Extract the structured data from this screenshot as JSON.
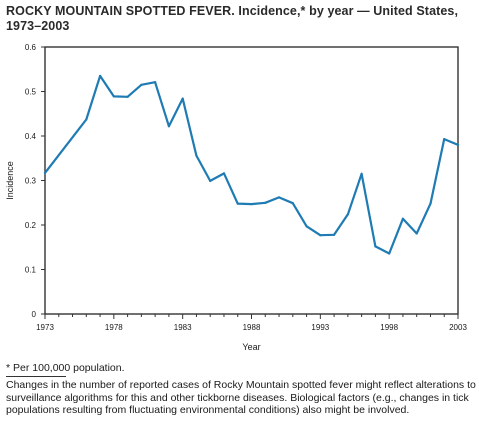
{
  "title": "ROCKY MOUNTAIN SPOTTED FEVER. Incidence,* by year — United States, 1973–2003",
  "footnote": "* Per 100,000 population.",
  "notes": "Changes in the number of reported cases of Rocky Mountain spotted fever might reflect alterations to surveillance algorithms for this and other tickborne diseases. Biological factors (e.g., changes in tick populations resulting from fluctuating environmental conditions) also might be involved.",
  "colors": {
    "line": "#1f7bb4",
    "axis": "#333333",
    "text": "#1a1a1a"
  },
  "chart_data": {
    "type": "line",
    "title": "ROCKY MOUNTAIN SPOTTED FEVER. Incidence,* by year — United States, 1973–2003",
    "xlabel": "Year",
    "ylabel": "Incidence",
    "xlim": [
      1973,
      2003
    ],
    "ylim": [
      0,
      0.6
    ],
    "xticks": [
      "1973",
      "1978",
      "1983",
      "1988",
      "1993",
      "1998",
      "2003"
    ],
    "yticks": [
      "0",
      "0.1",
      "0.2",
      "0.3",
      "0.4",
      "0.5",
      "0.6"
    ],
    "grid": false,
    "series": [
      {
        "x": [
          1973,
          1976,
          1977,
          1978,
          1979,
          1980,
          1981,
          1982,
          1983,
          1984,
          1985,
          1986,
          1987,
          1988,
          1989,
          1990,
          1991,
          1992,
          1993,
          1994,
          1995,
          1996,
          1997,
          1998,
          1999,
          2000,
          2001,
          2002,
          2003
        ],
        "values": [
          0.317,
          0.437,
          0.535,
          0.489,
          0.488,
          0.515,
          0.521,
          0.422,
          0.484,
          0.356,
          0.299,
          0.316,
          0.248,
          0.247,
          0.25,
          0.262,
          0.249,
          0.197,
          0.177,
          0.178,
          0.224,
          0.315,
          0.152,
          0.136,
          0.214,
          0.181,
          0.248,
          0.393,
          0.38
        ]
      }
    ]
  }
}
